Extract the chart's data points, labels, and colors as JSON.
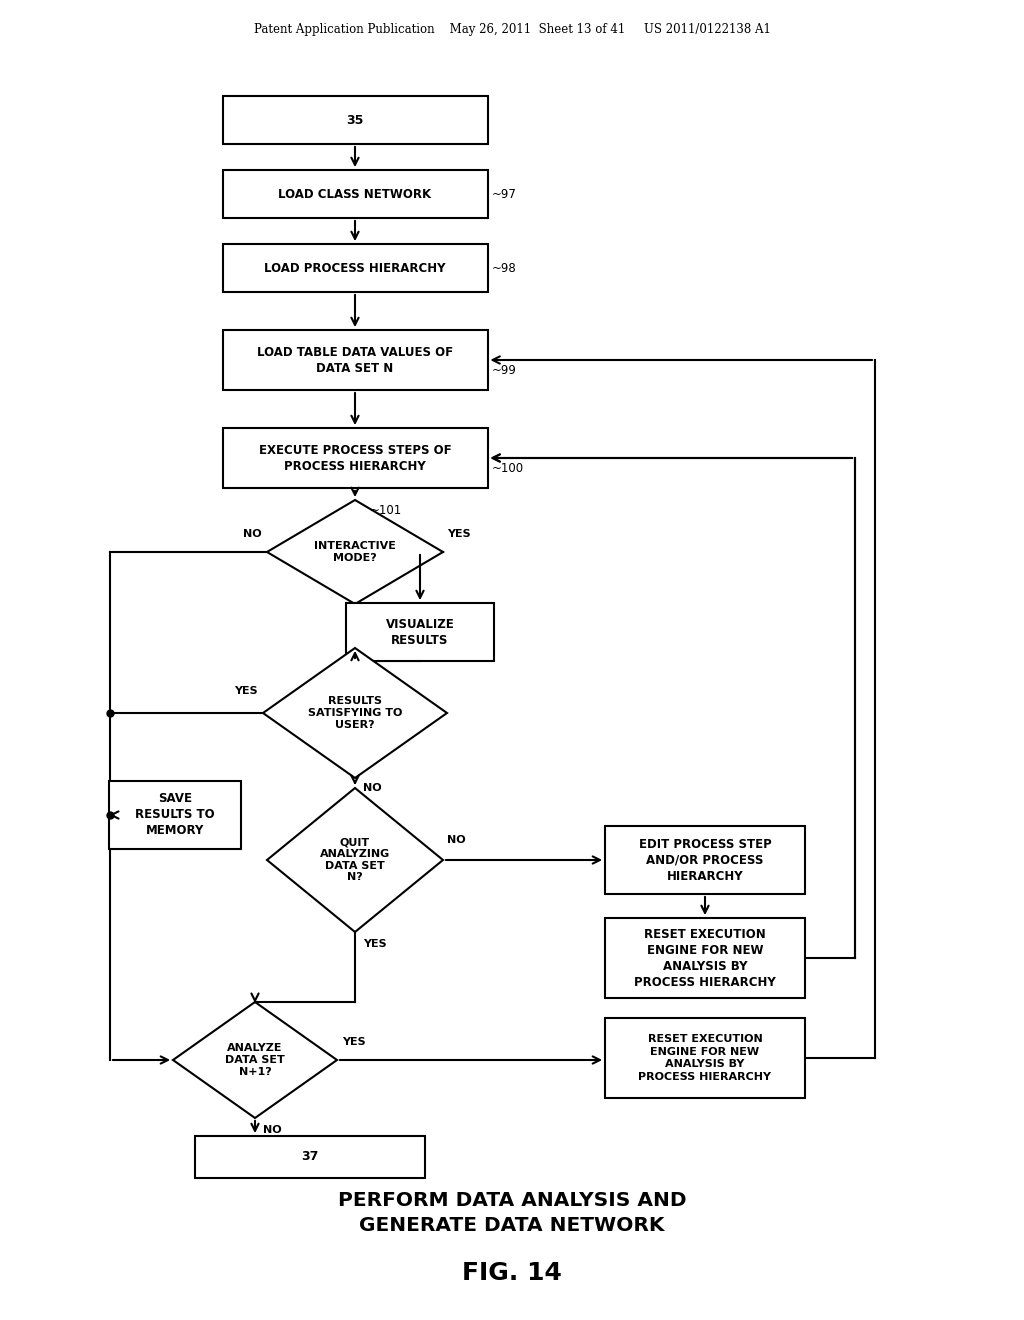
{
  "bg": "#ffffff",
  "header": "Patent Application Publication    May 26, 2011  Sheet 13 of 41     US 2011/0122138 A1",
  "footer1": "PERFORM DATA ANALYSIS AND\nGENERATE DATA NETWORK",
  "footer2": "FIG. 14",
  "lw": 1.5
}
